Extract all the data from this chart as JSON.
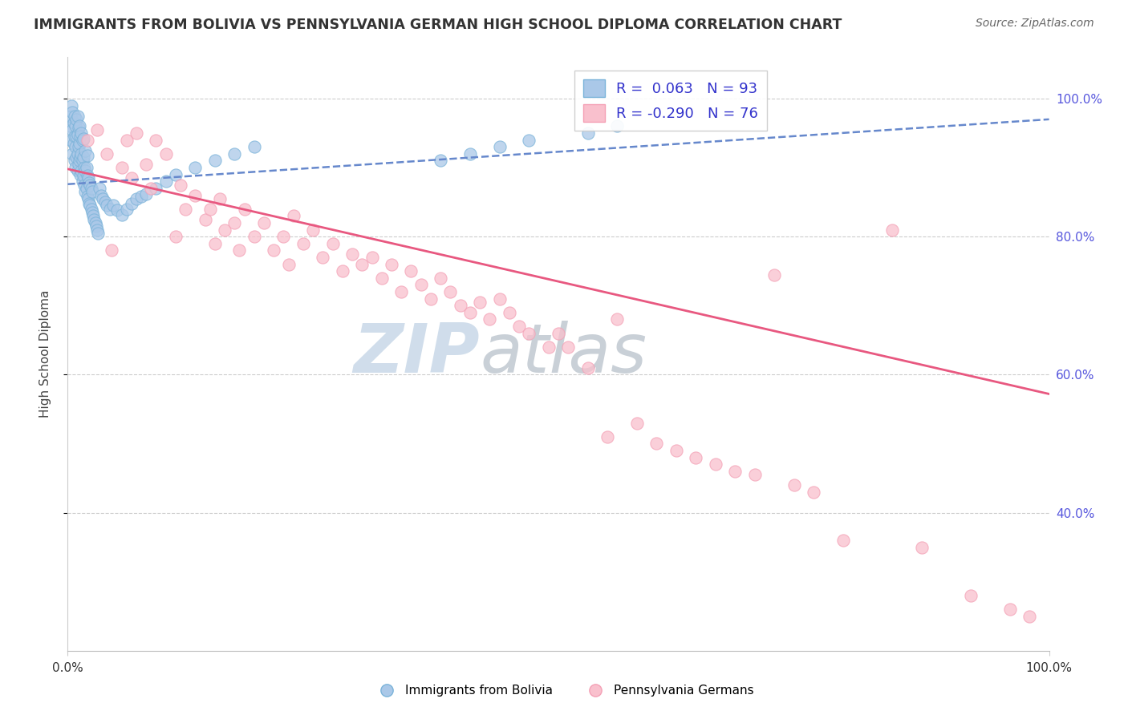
{
  "title": "IMMIGRANTS FROM BOLIVIA VS PENNSYLVANIA GERMAN HIGH SCHOOL DIPLOMA CORRELATION CHART",
  "source": "Source: ZipAtlas.com",
  "ylabel": "High School Diploma",
  "xlim": [
    0.0,
    1.0
  ],
  "ylim": [
    0.2,
    1.06
  ],
  "yticks": [
    0.4,
    0.6,
    0.8,
    1.0
  ],
  "ytick_labels": [
    "40.0%",
    "60.0%",
    "80.0%",
    "100.0%"
  ],
  "legend_labels": [
    "Immigrants from Bolivia",
    "Pennsylvania Germans"
  ],
  "blue_R": 0.063,
  "blue_N": 93,
  "pink_R": -0.29,
  "pink_N": 76,
  "blue_color": "#7ab3d9",
  "pink_color": "#f4a0b5",
  "watermark_zip": "ZIP",
  "watermark_atlas": "atlas",
  "grid_color": "#cccccc",
  "title_color": "#333333",
  "right_tick_color": "#5555dd",
  "blue_line_start_y": 0.876,
  "blue_line_end_y": 0.97,
  "pink_line_start_y": 0.898,
  "pink_line_end_y": 0.572,
  "blue_scatter_x": [
    0.002,
    0.003,
    0.004,
    0.004,
    0.005,
    0.005,
    0.005,
    0.006,
    0.006,
    0.007,
    0.007,
    0.007,
    0.008,
    0.008,
    0.008,
    0.009,
    0.009,
    0.009,
    0.01,
    0.01,
    0.01,
    0.01,
    0.011,
    0.011,
    0.011,
    0.012,
    0.012,
    0.012,
    0.013,
    0.013,
    0.013,
    0.014,
    0.014,
    0.014,
    0.015,
    0.015,
    0.015,
    0.016,
    0.016,
    0.016,
    0.017,
    0.017,
    0.018,
    0.018,
    0.018,
    0.019,
    0.019,
    0.02,
    0.02,
    0.02,
    0.021,
    0.021,
    0.022,
    0.022,
    0.023,
    0.023,
    0.024,
    0.024,
    0.025,
    0.025,
    0.026,
    0.027,
    0.028,
    0.029,
    0.03,
    0.031,
    0.032,
    0.034,
    0.036,
    0.038,
    0.04,
    0.043,
    0.046,
    0.05,
    0.055,
    0.06,
    0.065,
    0.07,
    0.075,
    0.08,
    0.09,
    0.1,
    0.11,
    0.13,
    0.15,
    0.17,
    0.19,
    0.38,
    0.41,
    0.44,
    0.47,
    0.53,
    0.56
  ],
  "blue_scatter_y": [
    0.96,
    0.975,
    0.94,
    0.99,
    0.92,
    0.955,
    0.98,
    0.935,
    0.965,
    0.91,
    0.945,
    0.975,
    0.9,
    0.93,
    0.96,
    0.915,
    0.945,
    0.97,
    0.895,
    0.92,
    0.948,
    0.975,
    0.905,
    0.93,
    0.958,
    0.91,
    0.935,
    0.96,
    0.89,
    0.915,
    0.945,
    0.895,
    0.92,
    0.95,
    0.88,
    0.91,
    0.94,
    0.888,
    0.915,
    0.942,
    0.875,
    0.9,
    0.865,
    0.895,
    0.925,
    0.87,
    0.9,
    0.858,
    0.888,
    0.918,
    0.855,
    0.885,
    0.848,
    0.878,
    0.845,
    0.875,
    0.84,
    0.87,
    0.835,
    0.865,
    0.83,
    0.825,
    0.82,
    0.815,
    0.81,
    0.805,
    0.87,
    0.86,
    0.855,
    0.85,
    0.845,
    0.84,
    0.845,
    0.838,
    0.832,
    0.84,
    0.848,
    0.855,
    0.858,
    0.862,
    0.87,
    0.88,
    0.89,
    0.9,
    0.91,
    0.92,
    0.93,
    0.91,
    0.92,
    0.93,
    0.94,
    0.95,
    0.96
  ],
  "pink_scatter_x": [
    0.02,
    0.03,
    0.04,
    0.045,
    0.055,
    0.06,
    0.065,
    0.07,
    0.08,
    0.085,
    0.09,
    0.1,
    0.11,
    0.115,
    0.12,
    0.13,
    0.14,
    0.145,
    0.15,
    0.155,
    0.16,
    0.17,
    0.175,
    0.18,
    0.19,
    0.2,
    0.21,
    0.22,
    0.225,
    0.23,
    0.24,
    0.25,
    0.26,
    0.27,
    0.28,
    0.29,
    0.3,
    0.31,
    0.32,
    0.33,
    0.34,
    0.35,
    0.36,
    0.37,
    0.38,
    0.39,
    0.4,
    0.41,
    0.42,
    0.43,
    0.44,
    0.45,
    0.46,
    0.47,
    0.49,
    0.5,
    0.51,
    0.53,
    0.55,
    0.56,
    0.58,
    0.6,
    0.62,
    0.64,
    0.66,
    0.68,
    0.7,
    0.72,
    0.74,
    0.76,
    0.79,
    0.84,
    0.87,
    0.92,
    0.96,
    0.98
  ],
  "pink_scatter_y": [
    0.94,
    0.955,
    0.92,
    0.78,
    0.9,
    0.94,
    0.885,
    0.95,
    0.905,
    0.87,
    0.94,
    0.92,
    0.8,
    0.875,
    0.84,
    0.86,
    0.825,
    0.84,
    0.79,
    0.855,
    0.81,
    0.82,
    0.78,
    0.84,
    0.8,
    0.82,
    0.78,
    0.8,
    0.76,
    0.83,
    0.79,
    0.81,
    0.77,
    0.79,
    0.75,
    0.775,
    0.76,
    0.77,
    0.74,
    0.76,
    0.72,
    0.75,
    0.73,
    0.71,
    0.74,
    0.72,
    0.7,
    0.69,
    0.705,
    0.68,
    0.71,
    0.69,
    0.67,
    0.66,
    0.64,
    0.66,
    0.64,
    0.61,
    0.51,
    0.68,
    0.53,
    0.5,
    0.49,
    0.48,
    0.47,
    0.46,
    0.455,
    0.745,
    0.44,
    0.43,
    0.36,
    0.81,
    0.35,
    0.28,
    0.26,
    0.25
  ]
}
